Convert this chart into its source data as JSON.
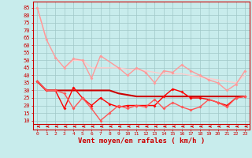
{
  "x": [
    0,
    1,
    2,
    3,
    4,
    5,
    6,
    7,
    8,
    9,
    10,
    11,
    12,
    13,
    14,
    15,
    16,
    17,
    18,
    19,
    20,
    21,
    22,
    23
  ],
  "line1": [
    85,
    64,
    null,
    null,
    null,
    null,
    null,
    null,
    null,
    null,
    null,
    null,
    null,
    null,
    null,
    null,
    null,
    null,
    null,
    null,
    null,
    null,
    null,
    null
  ],
  "line2": [
    85,
    64,
    52,
    45,
    51,
    50,
    38,
    53,
    null,
    45,
    40,
    45,
    42,
    35,
    43,
    42,
    47,
    43,
    40,
    37,
    35,
    30,
    34,
    43
  ],
  "line3": [
    null,
    null,
    null,
    45,
    50,
    50,
    45,
    45,
    45,
    45,
    44,
    44,
    43,
    42,
    41,
    41,
    41,
    40,
    39,
    38,
    37,
    36,
    35,
    40
  ],
  "line4": [
    36,
    30,
    30,
    18,
    32,
    25,
    20,
    25,
    21,
    19,
    20,
    20,
    20,
    20,
    26,
    31,
    29,
    25,
    25,
    24,
    22,
    20,
    25,
    26
  ],
  "line5": [
    36,
    30,
    30,
    30,
    30,
    30,
    30,
    30,
    30,
    28,
    27,
    26,
    26,
    26,
    26,
    26,
    26,
    26,
    26,
    26,
    26,
    26,
    26,
    26
  ],
  "line6": [
    36,
    30,
    30,
    28,
    18,
    25,
    18,
    10,
    15,
    20,
    18,
    20,
    19,
    24,
    18,
    22,
    19,
    17,
    19,
    24,
    22,
    19,
    25,
    26
  ],
  "xlabel": "Vent moyen/en rafales ( km/h )",
  "yticks": [
    10,
    15,
    20,
    25,
    30,
    35,
    40,
    45,
    50,
    55,
    60,
    65,
    70,
    75,
    80,
    85
  ],
  "ylim": [
    4,
    89
  ],
  "xlim": [
    -0.5,
    23.5
  ],
  "bg_color": "#c8ecec",
  "grid_color": "#a0c8c8",
  "line1_color": "#ffbbbb",
  "line2_color": "#ff9999",
  "line3_color": "#ffcccc",
  "line4_color": "#ff0000",
  "line5_color": "#cc0000",
  "line6_color": "#ff5555",
  "arrow_color": "#cc0000",
  "xlabel_color": "#cc0000",
  "tick_color": "#cc0000",
  "spine_color": "#cc0000"
}
